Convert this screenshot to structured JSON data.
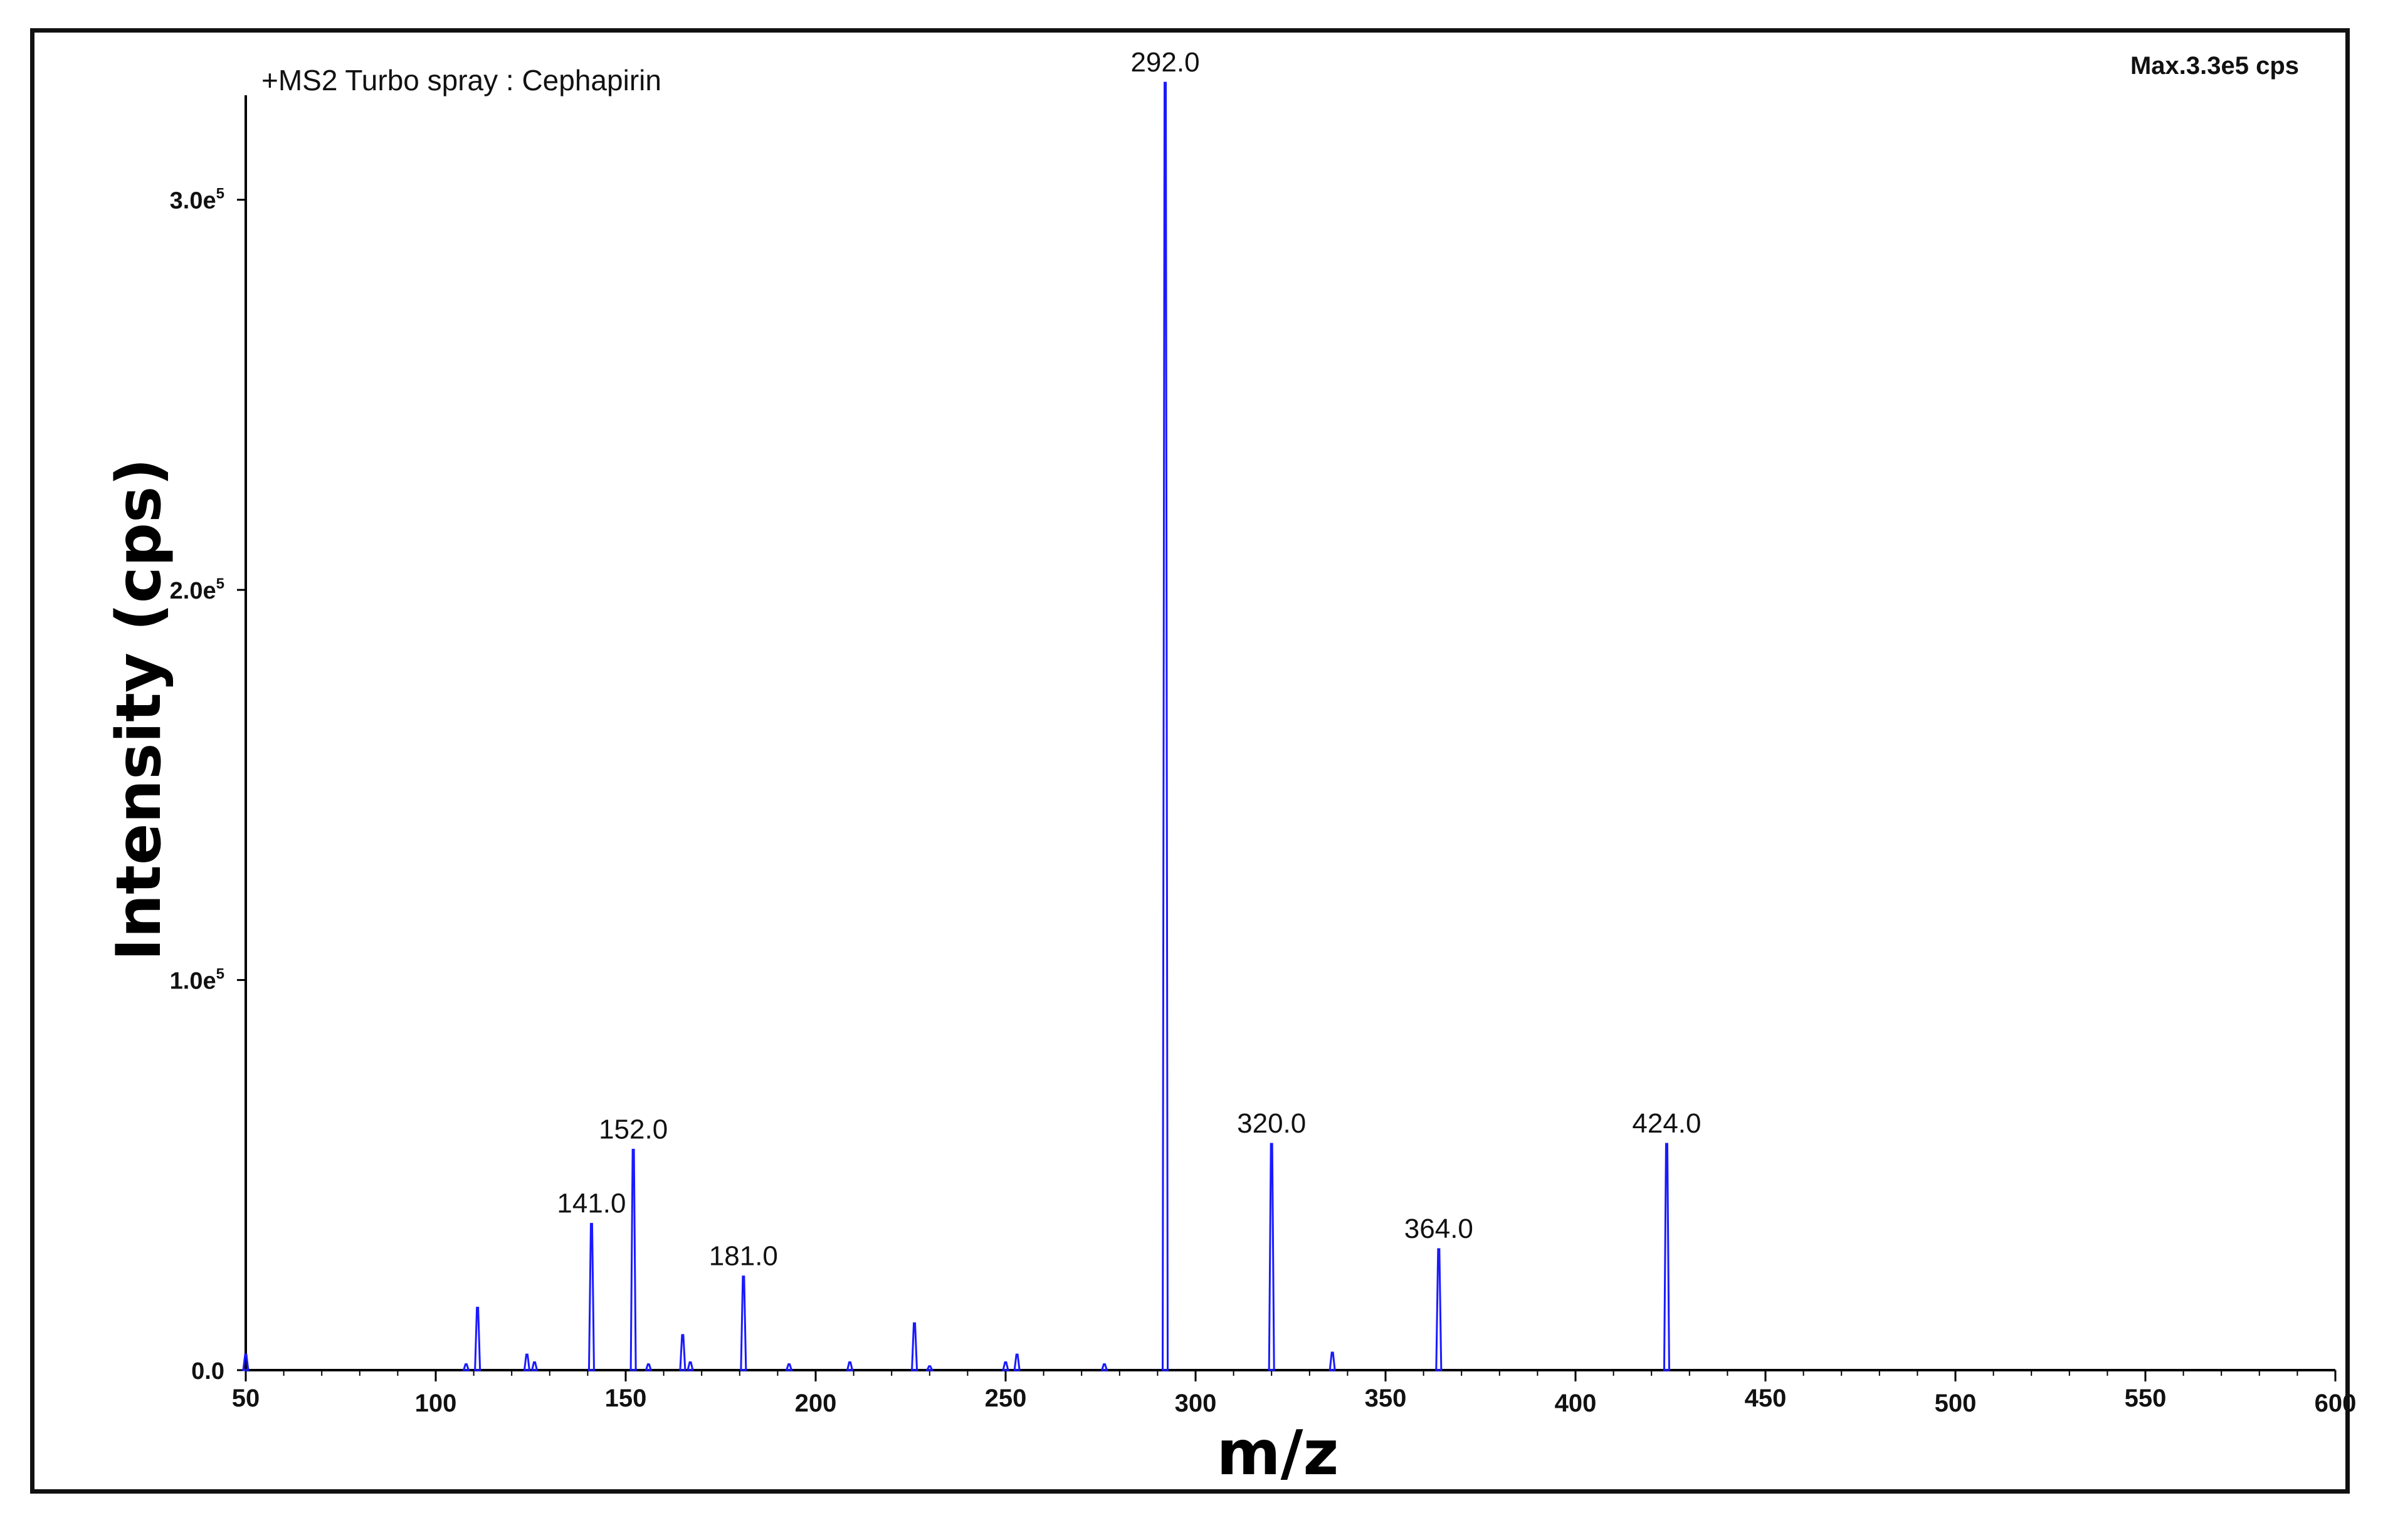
{
  "chart_data": {
    "type": "bar",
    "title": "+MS2 Turbo spray : Cephapirin",
    "max_label": "Max.3.3e5 cps",
    "xlabel": "m/z",
    "ylabel": "Intensity (cps)",
    "xlim": [
      50,
      600
    ],
    "ylim": [
      0,
      330000
    ],
    "x_ticks": [
      50,
      100,
      150,
      200,
      250,
      300,
      350,
      400,
      450,
      500,
      550,
      600
    ],
    "y_ticks": [
      {
        "value": 0,
        "label": "0.0"
      },
      {
        "value": 100000,
        "label": "1.0e5"
      },
      {
        "value": 200000,
        "label": "2.0e5"
      },
      {
        "value": 300000,
        "label": "3.0e5"
      }
    ],
    "grid": false,
    "series_color": "#1a1aff",
    "peaks": [
      {
        "mz": 50,
        "intensity": 4000,
        "label": ""
      },
      {
        "mz": 108,
        "intensity": 1500,
        "label": ""
      },
      {
        "mz": 111,
        "intensity": 16000,
        "label": ""
      },
      {
        "mz": 124,
        "intensity": 4000,
        "label": ""
      },
      {
        "mz": 126,
        "intensity": 2000,
        "label": ""
      },
      {
        "mz": 141,
        "intensity": 37500,
        "label": "141.0"
      },
      {
        "mz": 152,
        "intensity": 56500,
        "label": "152.0"
      },
      {
        "mz": 156,
        "intensity": 1500,
        "label": ""
      },
      {
        "mz": 165,
        "intensity": 9000,
        "label": ""
      },
      {
        "mz": 167,
        "intensity": 2000,
        "label": ""
      },
      {
        "mz": 181,
        "intensity": 24000,
        "label": "181.0"
      },
      {
        "mz": 193,
        "intensity": 1500,
        "label": ""
      },
      {
        "mz": 209,
        "intensity": 2000,
        "label": ""
      },
      {
        "mz": 226,
        "intensity": 12000,
        "label": ""
      },
      {
        "mz": 230,
        "intensity": 1000,
        "label": ""
      },
      {
        "mz": 250,
        "intensity": 2000,
        "label": ""
      },
      {
        "mz": 253,
        "intensity": 4000,
        "label": ""
      },
      {
        "mz": 276,
        "intensity": 1500,
        "label": ""
      },
      {
        "mz": 292,
        "intensity": 330000,
        "label": "292.0"
      },
      {
        "mz": 320,
        "intensity": 58000,
        "label": "320.0"
      },
      {
        "mz": 336,
        "intensity": 4500,
        "label": ""
      },
      {
        "mz": 364,
        "intensity": 31000,
        "label": "364.0"
      },
      {
        "mz": 424,
        "intensity": 58000,
        "label": "424.0"
      }
    ]
  }
}
